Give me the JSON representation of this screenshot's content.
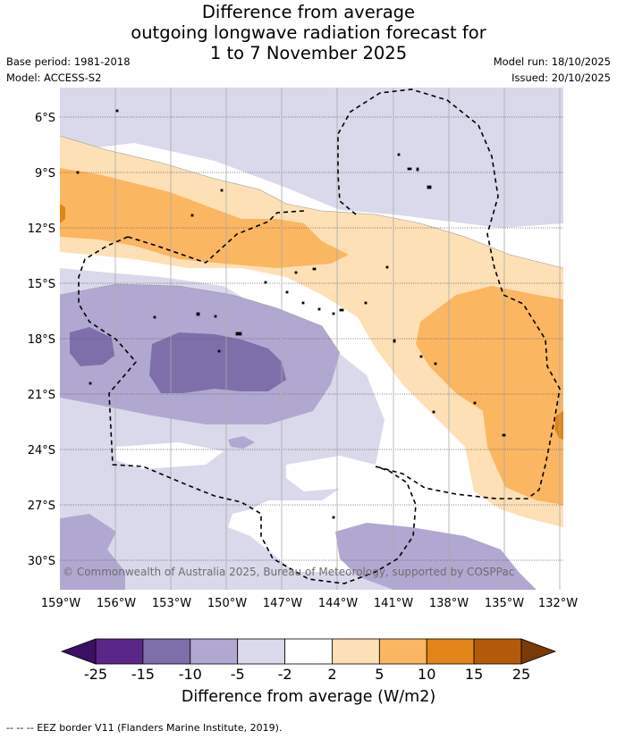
{
  "header": {
    "title_lines": [
      "Difference from average",
      "outgoing longwave radiation forecast for",
      "1 to 7 November 2025"
    ],
    "base_period": "Base period: 1981-2018",
    "model": "Model: ACCESS-S2",
    "model_run": "Model run: 18/10/2025",
    "issued": "Issued: 20/10/2025"
  },
  "map": {
    "lat_labels": [
      "6°S",
      "9°S",
      "12°S",
      "15°S",
      "18°S",
      "21°S",
      "24°S",
      "27°S",
      "30°S"
    ],
    "lon_labels": [
      "159°W",
      "156°W",
      "153°W",
      "150°W",
      "147°W",
      "144°W",
      "141°W",
      "138°W",
      "135°W",
      "132°W"
    ],
    "copyright": "© Commonwealth of Australia 2025, Bureau of Meteorology, supported by COSPPac"
  },
  "colorbar": {
    "tick_labels": [
      "-25",
      "-15",
      "-10",
      "-5",
      "-2",
      "2",
      "5",
      "10",
      "15",
      "25"
    ],
    "colors": [
      "#5a2789",
      "#7e6fab",
      "#b1a8d1",
      "#d9d9eb",
      "#ffffff",
      "#fde0b6",
      "#fbb662",
      "#e08516",
      "#b35a08"
    ],
    "under_color": "#3b0f63",
    "over_color": "#7a3a06",
    "title": "Difference from average (W/m2)"
  },
  "footer": {
    "legend": "--  --  -- EEZ border V11 (Flanders Marine Institute, 2019)."
  }
}
